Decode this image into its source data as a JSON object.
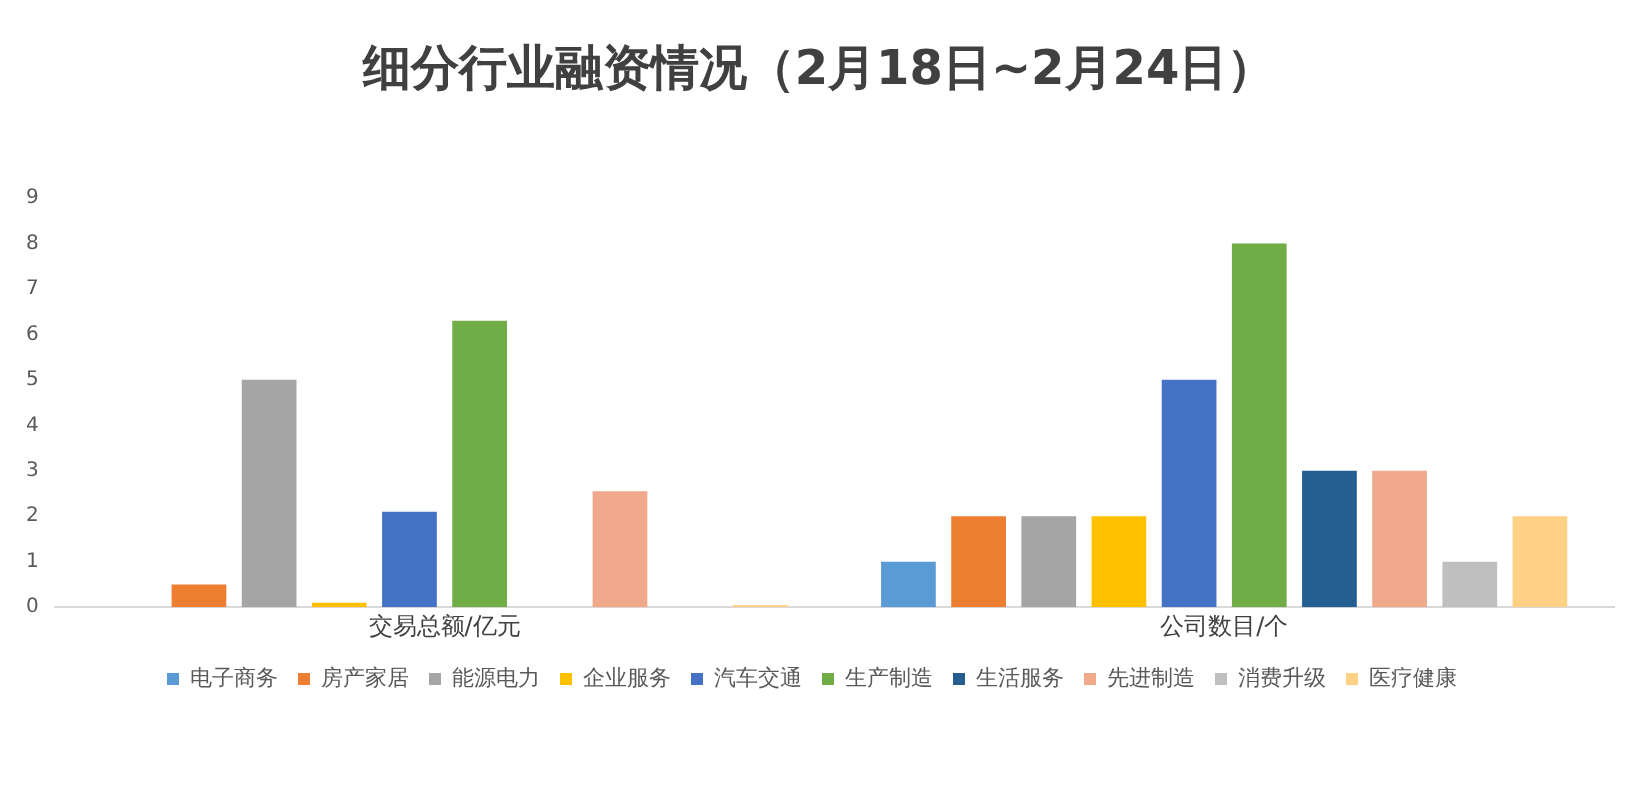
{
  "chart_data": {
    "type": "bar",
    "title": "细分行业融资情况（2月18日~2月24日）",
    "categories": [
      "交易总额/亿元",
      "公司数目/个"
    ],
    "series": [
      {
        "name": "电子商务",
        "color": "#5b9bd5",
        "values": [
          0,
          1
        ]
      },
      {
        "name": "房产家居",
        "color": "#ed7d31",
        "values": [
          0.5,
          2
        ]
      },
      {
        "name": "能源电力",
        "color": "#a5a5a5",
        "values": [
          5,
          2
        ]
      },
      {
        "name": "企业服务",
        "color": "#ffc000",
        "values": [
          0.1,
          2
        ]
      },
      {
        "name": "汽车交通",
        "color": "#4472c4",
        "values": [
          2.1,
          5
        ]
      },
      {
        "name": "生产制造",
        "color": "#70ad47",
        "values": [
          6.3,
          8
        ]
      },
      {
        "name": "生活服务",
        "color": "#255e91",
        "values": [
          0,
          3
        ]
      },
      {
        "name": "先进制造",
        "color": "#f0a98b",
        "values": [
          2.55,
          3
        ]
      },
      {
        "name": "消费升级",
        "color": "#bfbfbf",
        "values": [
          0,
          1
        ]
      },
      {
        "name": "医疗健康",
        "color": "#ffd185",
        "values": [
          0.05,
          2
        ]
      }
    ],
    "ylim": [
      0,
      9
    ],
    "yticks": [
      0,
      1,
      2,
      3,
      4,
      5,
      6,
      7,
      8,
      9
    ],
    "grid": false,
    "legend": "bottom"
  }
}
